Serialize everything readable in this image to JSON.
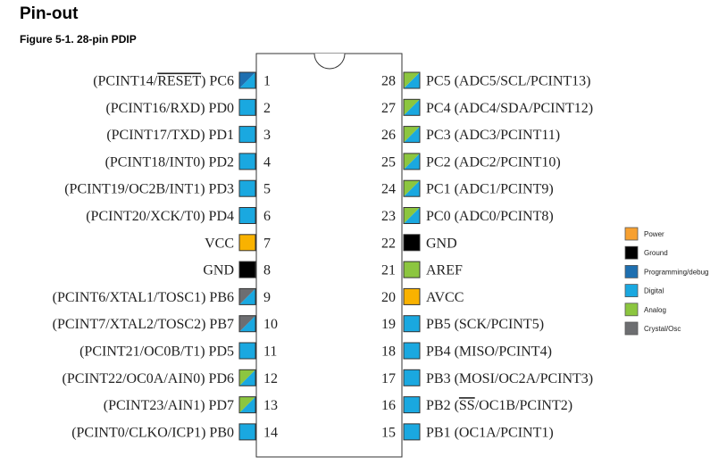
{
  "header": {
    "title": "Pin-out",
    "figure_caption": "Figure 5-1.  28-pin PDIP"
  },
  "colors": {
    "power": "#F7A030",
    "ground": "#000000",
    "programming": "#1E6FB0",
    "digital": "#1AA8E0",
    "analog": "#8CC63F",
    "crystal": "#6D6E71",
    "supply": "#F9B200",
    "outline": "#333333"
  },
  "left_pins": [
    {
      "num": "1",
      "prefix": "(PCINT14/",
      "overline": "RESET",
      "suffix": ") PC6",
      "colors": [
        "programming",
        "digital"
      ]
    },
    {
      "num": "2",
      "prefix": "(PCINT16/RXD) PD0",
      "colors": [
        "digital"
      ]
    },
    {
      "num": "3",
      "prefix": "(PCINT17/TXD) PD1",
      "colors": [
        "digital"
      ]
    },
    {
      "num": "4",
      "prefix": "(PCINT18/INT0) PD2",
      "colors": [
        "digital"
      ]
    },
    {
      "num": "5",
      "prefix": "(PCINT19/OC2B/INT1) PD3",
      "colors": [
        "digital"
      ]
    },
    {
      "num": "6",
      "prefix": "(PCINT20/XCK/T0) PD4",
      "colors": [
        "digital"
      ]
    },
    {
      "num": "7",
      "prefix": "VCC",
      "colors": [
        "supply"
      ]
    },
    {
      "num": "8",
      "prefix": "GND",
      "colors": [
        "ground"
      ]
    },
    {
      "num": "9",
      "prefix": "(PCINT6/XTAL1/TOSC1) PB6",
      "colors": [
        "crystal",
        "digital"
      ]
    },
    {
      "num": "10",
      "prefix": "(PCINT7/XTAL2/TOSC2) PB7",
      "colors": [
        "crystal",
        "digital"
      ]
    },
    {
      "num": "11",
      "prefix": "(PCINT21/OC0B/T1) PD5",
      "colors": [
        "digital"
      ]
    },
    {
      "num": "12",
      "prefix": "(PCINT22/OC0A/AIN0) PD6",
      "colors": [
        "analog",
        "digital"
      ]
    },
    {
      "num": "13",
      "prefix": "(PCINT23/AIN1) PD7",
      "colors": [
        "analog",
        "digital"
      ]
    },
    {
      "num": "14",
      "prefix": "(PCINT0/CLKO/ICP1) PB0",
      "colors": [
        "digital"
      ]
    }
  ],
  "right_pins": [
    {
      "num": "28",
      "prefix": "PC5 (ADC5/SCL/PCINT13)",
      "colors": [
        "analog",
        "digital"
      ]
    },
    {
      "num": "27",
      "prefix": "PC4 (ADC4/SDA/PCINT12)",
      "colors": [
        "analog",
        "digital"
      ]
    },
    {
      "num": "26",
      "prefix": "PC3 (ADC3/PCINT11)",
      "colors": [
        "analog",
        "digital"
      ]
    },
    {
      "num": "25",
      "prefix": "PC2 (ADC2/PCINT10)",
      "colors": [
        "analog",
        "digital"
      ]
    },
    {
      "num": "24",
      "prefix": "PC1 (ADC1/PCINT9)",
      "colors": [
        "analog",
        "digital"
      ]
    },
    {
      "num": "23",
      "prefix": "PC0 (ADC0/PCINT8)",
      "colors": [
        "analog",
        "digital"
      ]
    },
    {
      "num": "22",
      "prefix": "GND",
      "colors": [
        "ground"
      ]
    },
    {
      "num": "21",
      "prefix": "AREF",
      "colors": [
        "analog"
      ]
    },
    {
      "num": "20",
      "prefix": "AVCC",
      "colors": [
        "supply"
      ]
    },
    {
      "num": "19",
      "prefix": "PB5 (SCK/PCINT5)",
      "colors": [
        "digital"
      ]
    },
    {
      "num": "18",
      "prefix": "PB4 (MISO/PCINT4)",
      "colors": [
        "digital"
      ]
    },
    {
      "num": "17",
      "prefix": "PB3 (MOSI/OC2A/PCINT3)",
      "colors": [
        "digital"
      ]
    },
    {
      "num": "16",
      "prefix": "PB2 (",
      "overline": "SS",
      "suffix": "/OC1B/PCINT2)",
      "colors": [
        "digital"
      ]
    },
    {
      "num": "15",
      "prefix": "PB1 (OC1A/PCINT1)",
      "colors": [
        "digital"
      ]
    }
  ],
  "legend": [
    {
      "label": "Power",
      "color": "power"
    },
    {
      "label": "Ground",
      "color": "ground"
    },
    {
      "label": "Programming/debug",
      "color": "programming"
    },
    {
      "label": "Digital",
      "color": "digital"
    },
    {
      "label": "Analog",
      "color": "analog"
    },
    {
      "label": "Crystal/Osc",
      "color": "crystal"
    }
  ]
}
